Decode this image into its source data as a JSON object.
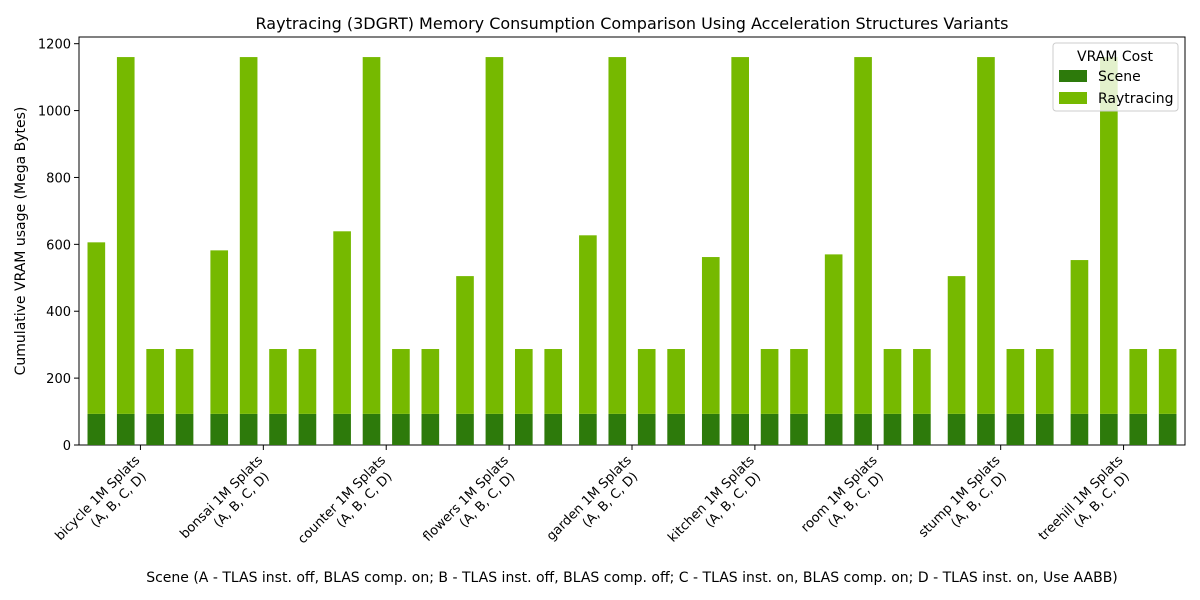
{
  "chart_data": {
    "type": "bar",
    "title": "Raytracing (3DGRT) Memory Consumption Comparison Using Acceleration Structures Variants",
    "xlabel": "Scene (A - TLAS inst. off, BLAS comp. on; B - TLAS inst. off, BLAS comp. off; C - TLAS inst. on, BLAS comp. on; D - TLAS inst. on, Use AABB)",
    "ylabel": "Cumulative VRAM usage (Mega Bytes)",
    "ylim": [
      0,
      1220
    ],
    "yticks": [
      0,
      200,
      400,
      600,
      800,
      1000,
      1200
    ],
    "stacked": true,
    "variants": [
      "A",
      "B",
      "C",
      "D"
    ],
    "categories": [
      {
        "line1": "bicycle 1M Splats",
        "line2": "(A, B, C, D)"
      },
      {
        "line1": "bonsai 1M Splats",
        "line2": "(A, B, C, D)"
      },
      {
        "line1": "counter 1M Splats",
        "line2": "(A, B, C, D)"
      },
      {
        "line1": "flowers 1M Splats",
        "line2": "(A, B, C, D)"
      },
      {
        "line1": "garden 1M Splats",
        "line2": "(A, B, C, D)"
      },
      {
        "line1": "kitchen 1M Splats",
        "line2": "(A, B, C, D)"
      },
      {
        "line1": "room 1M Splats",
        "line2": "(A, B, C, D)"
      },
      {
        "line1": "stump 1M Splats",
        "line2": "(A, B, C, D)"
      },
      {
        "line1": "treehill 1M Splats",
        "line2": "(A, B, C, D)"
      }
    ],
    "series": [
      {
        "name": "Scene",
        "color": "#2d7a0b",
        "values": [
          [
            93,
            93,
            93,
            93
          ],
          [
            93,
            93,
            93,
            93
          ],
          [
            93,
            93,
            93,
            93
          ],
          [
            93,
            93,
            93,
            93
          ],
          [
            93,
            93,
            93,
            93
          ],
          [
            93,
            93,
            93,
            93
          ],
          [
            93,
            93,
            93,
            93
          ],
          [
            93,
            93,
            93,
            93
          ],
          [
            93,
            93,
            93,
            93
          ]
        ]
      },
      {
        "name": "Raytracing",
        "color": "#76b900",
        "values": [
          [
            513,
            1067,
            194,
            194
          ],
          [
            489,
            1067,
            194,
            194
          ],
          [
            546,
            1067,
            194,
            194
          ],
          [
            412,
            1067,
            194,
            194
          ],
          [
            534,
            1067,
            194,
            194
          ],
          [
            469,
            1067,
            194,
            194
          ],
          [
            477,
            1067,
            194,
            194
          ],
          [
            412,
            1067,
            194,
            194
          ],
          [
            460,
            1067,
            194,
            194
          ]
        ]
      }
    ],
    "legend": {
      "title": "VRAM Cost",
      "position": "top-right"
    },
    "grid": false
  }
}
